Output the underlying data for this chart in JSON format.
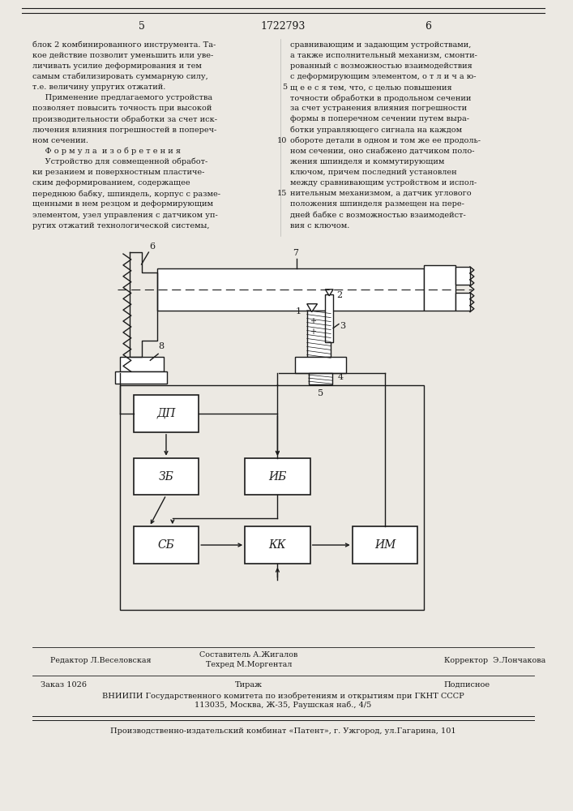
{
  "page_width": 7.07,
  "page_height": 10.0,
  "bg_color": "#ece9e3",
  "text_color": "#1a1a1a",
  "header_number_left": "5",
  "header_title": "1722793",
  "header_number_right": "6",
  "left_col_text": [
    "блок 2 комбинированного инструмента. Та-",
    "кое действие позволит уменьшить или уве-",
    "личивать усилие деформирования и тем",
    "самым стабилизировать суммарную силу,",
    "т.е. величину упругих отжатий.",
    "     Применение предлагаемого устройства",
    "позволяет повысить точность при высокой",
    "производительности обработки за счет иск-",
    "лючения влияния погрешностей в попереч-",
    "ном сечении.",
    "     Ф о р м у л а  и з о б р е т е н и я",
    "     Устройство для совмещенной обработ-",
    "ки резанием и поверхностным пластиче-",
    "ским деформированием, содержащее",
    "переднюю бабку, шпиндель, корпус с разме-",
    "щенными в нем резцом и деформирующим",
    "элементом, узел управления с датчиком уп-",
    "ругих отжатий технологической системы,"
  ],
  "right_col_text": [
    "сравнивающим и задающим устройствами,",
    "а также исполнительный механизм, смонти-",
    "рованный с возможностью взаимодействия",
    "с деформирующим элементом, о т л и ч а ю-",
    "щ е е с я тем, что, с целью повышения",
    "точности обработки в продольном сечении",
    "за счет устранения влияния погрешности",
    "формы в поперечном сечении путем выра-",
    "ботки управляющего сигнала на каждом",
    "обороте детали в одном и том же ее продоль-",
    "ном сечении, оно снабжено датчиком поло-",
    "жения шпинделя и коммутирующим",
    "ключом, причем последний установлен",
    "между сравнивающим устройством и испол-",
    "нительным механизмом, а датчик углового",
    "положения шпинделя размещен на пере-",
    "дней бабке с возможностью взаимодейст-",
    "вия с ключом."
  ],
  "right_col_line_numbers": [
    null,
    null,
    null,
    null,
    "5",
    null,
    null,
    null,
    null,
    "10",
    null,
    null,
    null,
    null,
    "15",
    null,
    null,
    null
  ],
  "footer_editor": "Редактор Л.Веселовская",
  "footer_composer": "Составитель А.Жигалов",
  "footer_techred": "Техред М.Моргентал",
  "footer_corrector": "Корректор  Э.Лончакова",
  "footer_order": "Заказ 1026",
  "footer_tirazh": "Тираж",
  "footer_podpisnoe": "Подписное",
  "footer_vniipи": "ВНИИПИ Государственного комитета по изобретениям и открытиям при ГКНТ СССР",
  "footer_address": "113035, Москва, Ж-35, Раушская наб., 4/5",
  "footer_kombinat": "Производственно-издательский комбинат «Патент», г. Ужгород, ул.Гагарина, 101"
}
